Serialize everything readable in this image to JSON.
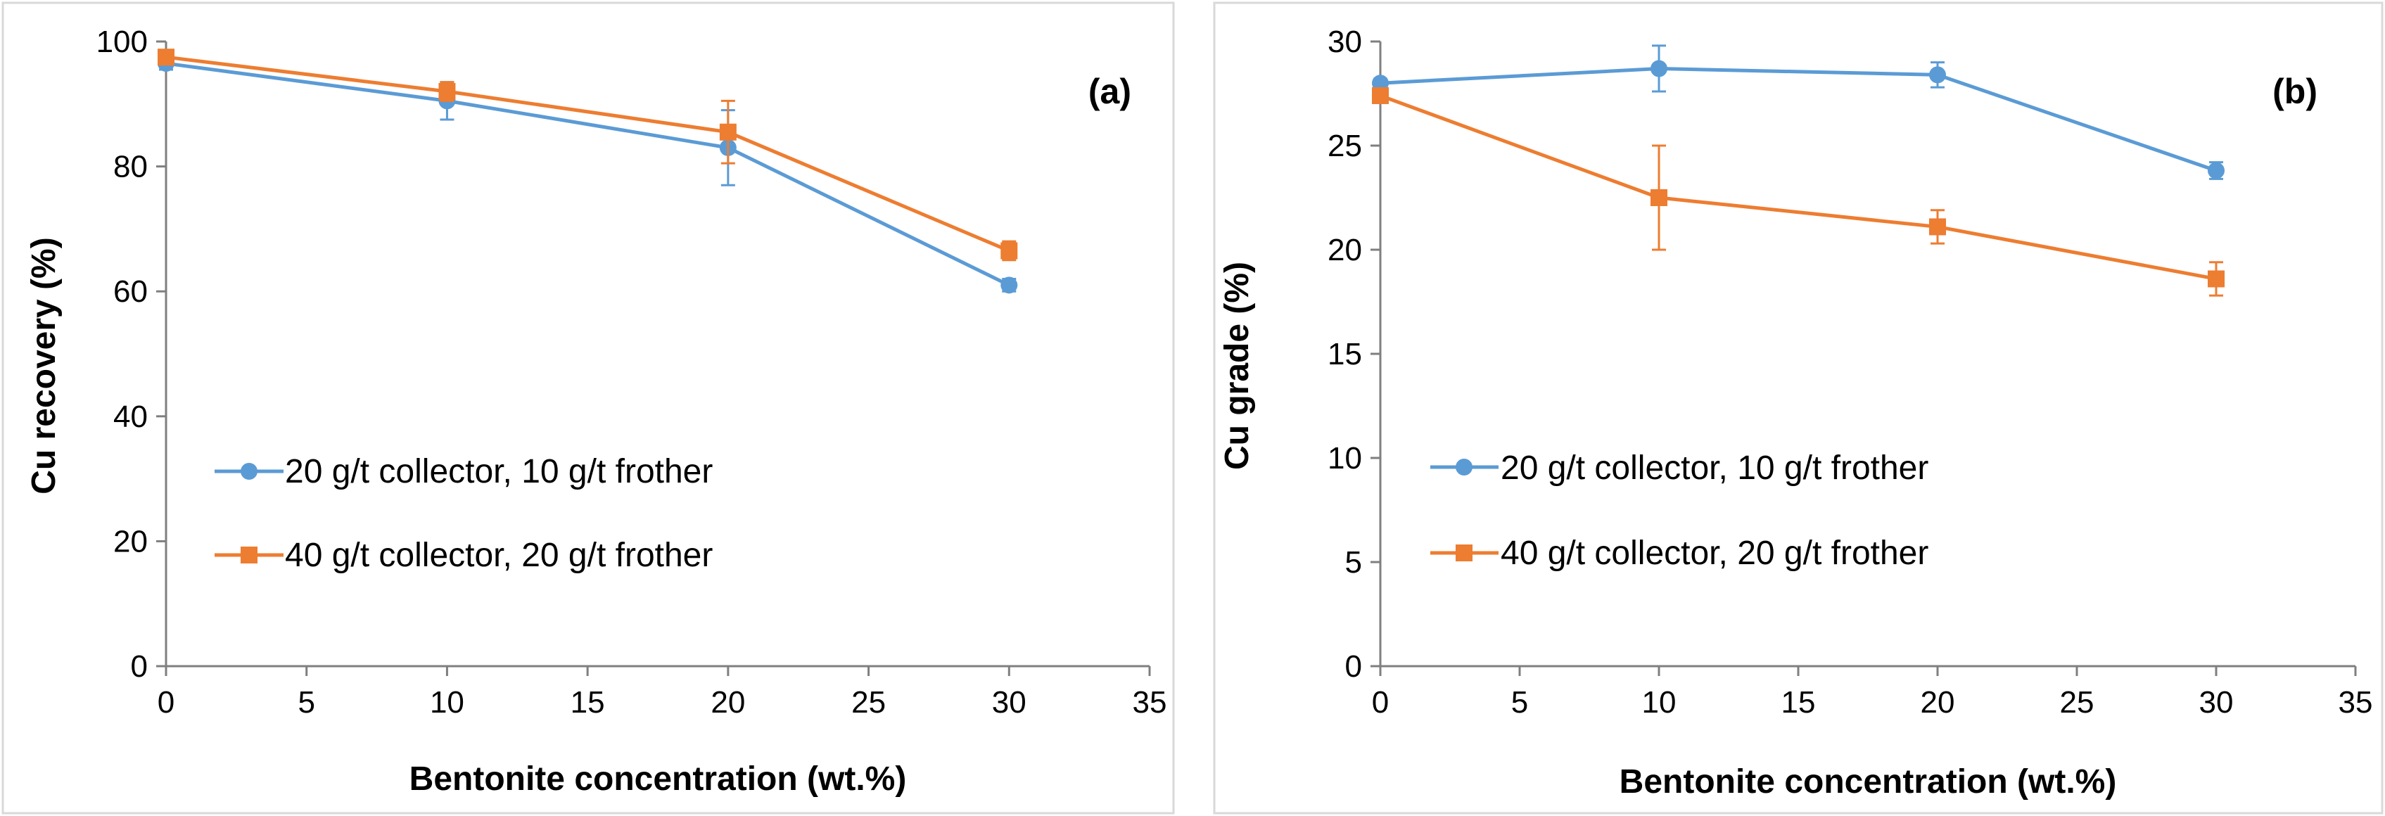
{
  "chart_data": [
    {
      "type": "line",
      "panel_label": "(a)",
      "xlabel": "Bentonite concentration (wt.%)",
      "ylabel": "Cu recovery (%)",
      "xlim": [
        0,
        35
      ],
      "ylim": [
        0,
        100
      ],
      "xticks": [
        "0",
        "5",
        "10",
        "15",
        "20",
        "25",
        "30",
        "35"
      ],
      "yticks": [
        "0",
        "20",
        "40",
        "60",
        "80",
        "100"
      ],
      "legend_position": "center-left",
      "series": [
        {
          "name": "20 g/t collector, 10 g/t frother",
          "color": "#5B9BD5",
          "marker": "circle",
          "x": [
            0,
            10,
            20,
            30
          ],
          "y": [
            96.5,
            90.5,
            83,
            61
          ],
          "err": [
            1,
            3,
            6,
            1
          ]
        },
        {
          "name": "40 g/t collector, 20 g/t frother",
          "color": "#ED7D31",
          "marker": "square",
          "x": [
            0,
            10,
            20,
            30
          ],
          "y": [
            97.5,
            92,
            85.5,
            66.5
          ],
          "err": [
            1,
            1.5,
            5,
            1.5
          ]
        }
      ]
    },
    {
      "type": "line",
      "panel_label": "(b)",
      "xlabel": "Bentonite concentration (wt.%)",
      "ylabel": "Cu grade (%)",
      "xlim": [
        0,
        35
      ],
      "ylim": [
        0,
        30
      ],
      "xticks": [
        "0",
        "5",
        "10",
        "15",
        "20",
        "25",
        "30",
        "35"
      ],
      "yticks": [
        "0",
        "5",
        "10",
        "15",
        "20",
        "25",
        "30"
      ],
      "legend_position": "center-left",
      "series": [
        {
          "name": "20 g/t collector, 10 g/t frother",
          "color": "#5B9BD5",
          "marker": "circle",
          "x": [
            0,
            10,
            20,
            30
          ],
          "y": [
            28,
            28.7,
            28.4,
            23.8
          ],
          "err": [
            0.2,
            1.1,
            0.6,
            0.4
          ]
        },
        {
          "name": "40 g/t collector, 20 g/t frother",
          "color": "#ED7D31",
          "marker": "square",
          "x": [
            0,
            10,
            20,
            30
          ],
          "y": [
            27.4,
            22.5,
            21.1,
            18.6
          ],
          "err": [
            0.2,
            2.5,
            0.8,
            0.8
          ]
        }
      ]
    }
  ]
}
